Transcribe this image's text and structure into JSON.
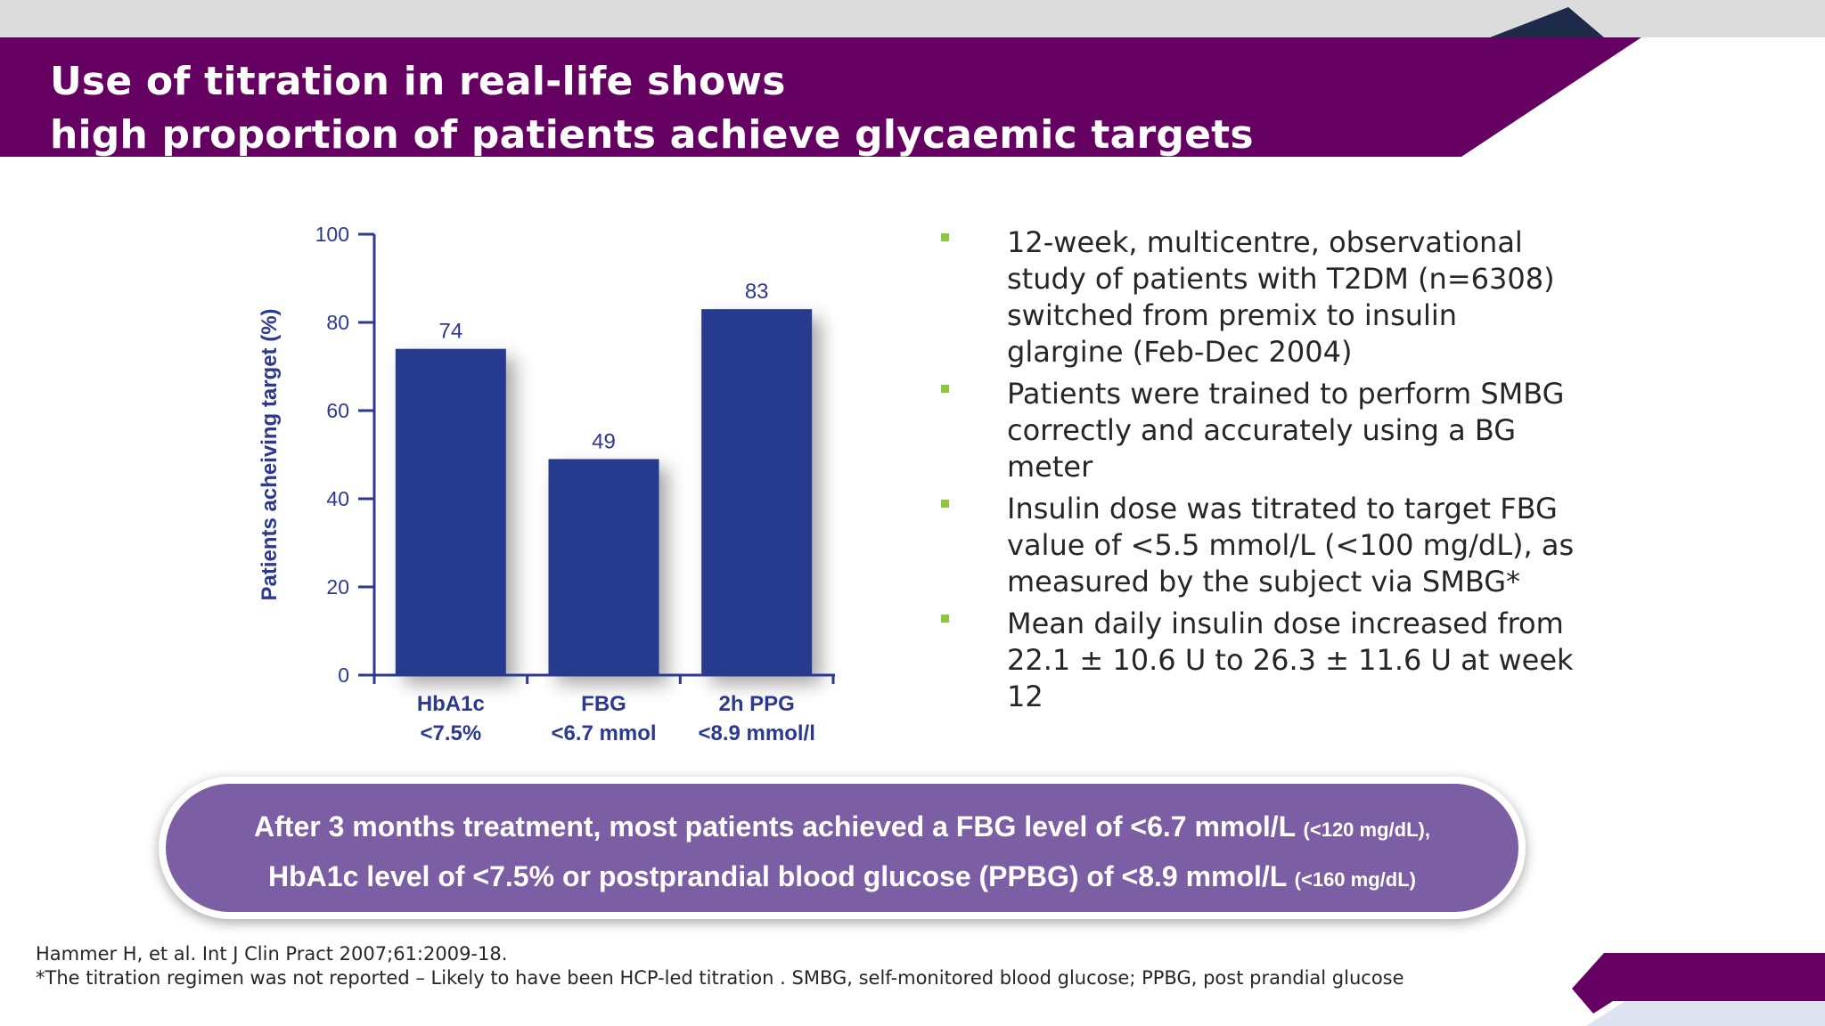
{
  "title": {
    "line1": "Use of titration in real-life shows",
    "line2": "high proportion of patients achieve glycaemic targets"
  },
  "colors": {
    "banner": "#650062",
    "bar": "#263a8e",
    "axis": "#2b3990",
    "bullet": "#8dc63f",
    "callout": "#7b5ea3",
    "navy": "#1e2a4a"
  },
  "chart_data": {
    "type": "bar",
    "categories": [
      "HbA1c\n<7.5%",
      "FBG\n<6.7 mmol",
      "2h PPG\n<8.9 mmol/l"
    ],
    "category_lines": [
      [
        "HbA1c",
        "<7.5%"
      ],
      [
        "FBG",
        "<6.7 mmol"
      ],
      [
        "2h PPG",
        "<8.9 mmol/l"
      ]
    ],
    "values": [
      74,
      49,
      83
    ],
    "value_labels": [
      "74",
      "49",
      "83"
    ],
    "ylabel": "Patients acheiving target (%)",
    "xlabel": "",
    "ylim": [
      0,
      100
    ],
    "yticks": [
      0,
      20,
      40,
      60,
      80,
      100
    ],
    "ytick_labels": [
      "0",
      "20",
      "40",
      "60",
      "80",
      "100"
    ]
  },
  "bullets": [
    "12-week, multicentre, observational study of patients with T2DM (n=6308) switched from premix to insulin glargine (Feb-Dec 2004)",
    "Patients were trained to perform SMBG correctly and accurately using a BG meter",
    "Insulin dose was titrated to target FBG value of <5.5 mmol/L (<100 mg/dL), as measured by the subject via SMBG*",
    "Mean daily insulin dose increased from 22.1 ± 10.6 U to 26.3 ± 11.6 U at week 12"
  ],
  "callout": {
    "line1_main": "After 3 months treatment, most patients achieved a FBG level of <6.7 mmol/L",
    "line1_small": "(<120 mg/dL),",
    "line2_main": "HbA1c level of <7.5% or postprandial blood glucose (PPBG) of <8.9 mmol/L",
    "line2_small": "(<160 mg/dL)"
  },
  "references": {
    "citation": "Hammer H, et al. Int J Clin Pract 2007;61:2009-18.",
    "footnote": "*The titration regimen was not reported – Likely to have been HCP-led titration . SMBG, self-monitored blood glucose; PPBG, post prandial glucose"
  }
}
